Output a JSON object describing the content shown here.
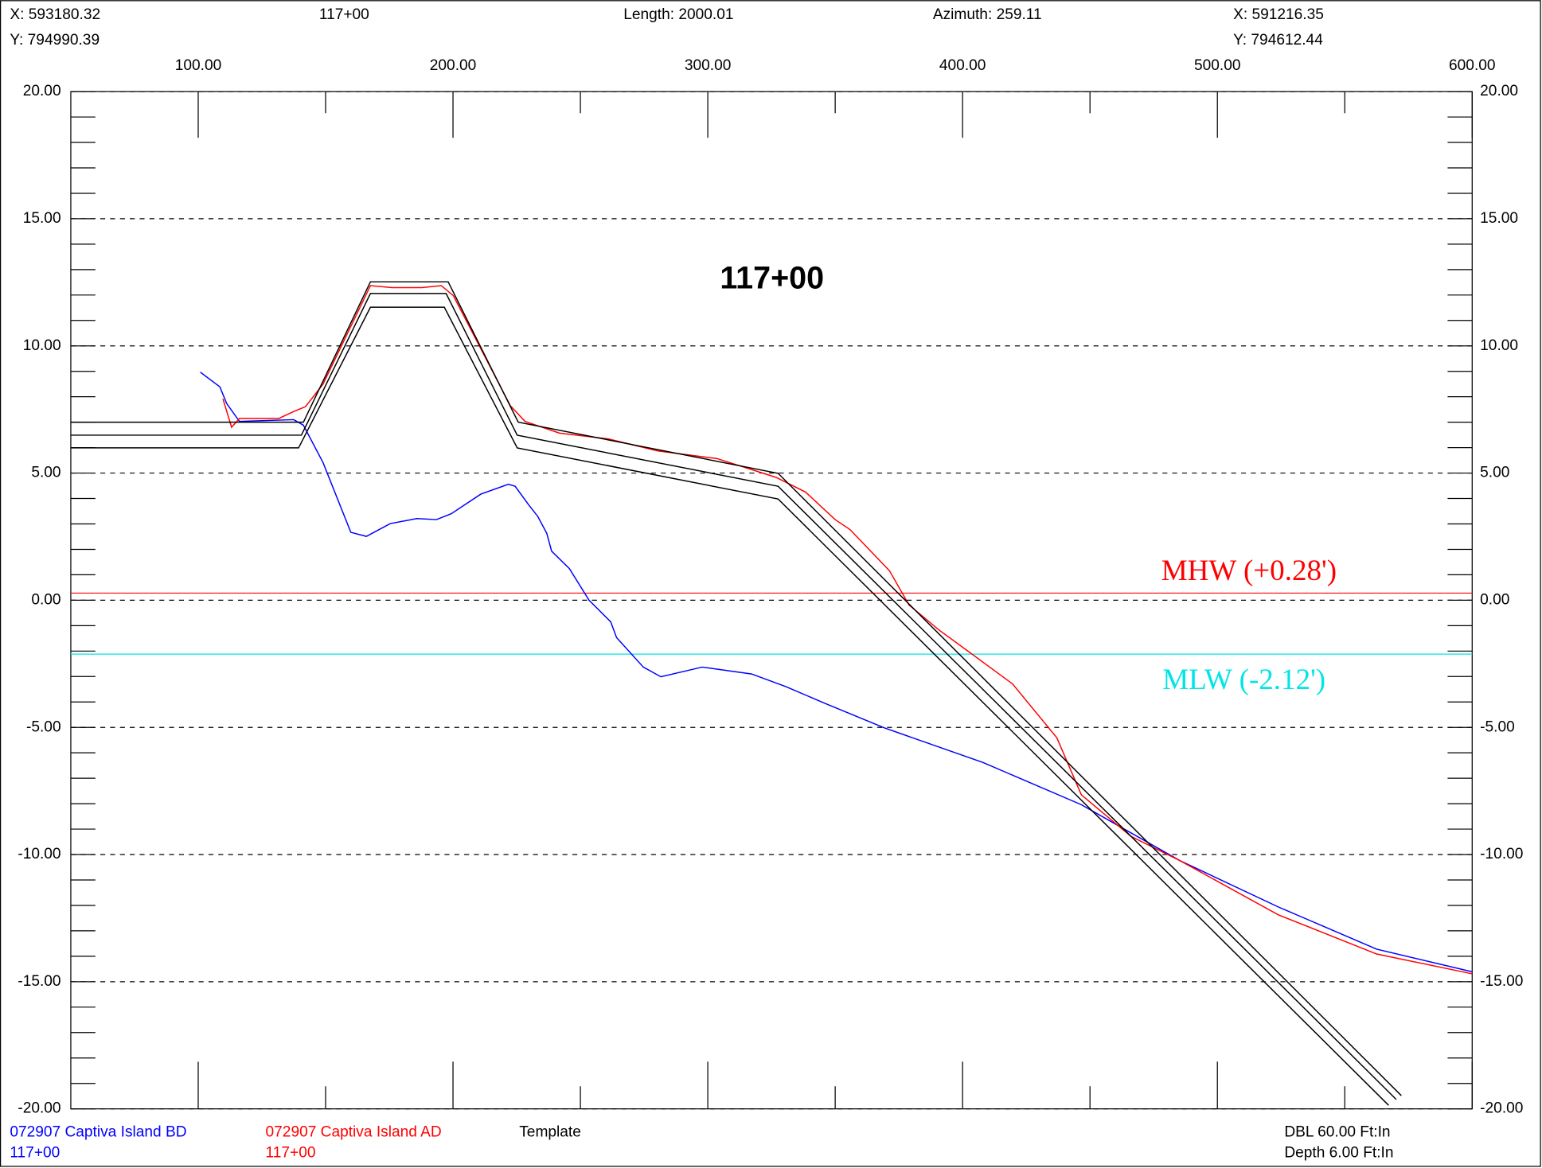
{
  "header": {
    "left": [
      "X: 593180.32",
      "Y: 794990.39"
    ],
    "station": "117+00",
    "length": "Length: 2000.01",
    "azimuth": "Azimuth: 259.11",
    "right": [
      "X: 591216.35",
      "Y: 794612.44"
    ]
  },
  "chart_data": {
    "type": "line",
    "title": "117+00",
    "xlim": [
      50,
      600
    ],
    "xticks": [
      {
        "value": 100,
        "label": "100.00"
      },
      {
        "value": 200,
        "label": "200.00"
      },
      {
        "value": 300,
        "label": "300.00"
      },
      {
        "value": 400,
        "label": "400.00"
      },
      {
        "value": 500,
        "label": "500.00"
      },
      {
        "value": 600,
        "label": "600.00"
      }
    ],
    "xminor": [
      150,
      250,
      350,
      450,
      550
    ],
    "ylim": [
      -20,
      20
    ],
    "yticks": [
      {
        "value": 20,
        "label": "20.00"
      },
      {
        "value": 15,
        "label": "15.00"
      },
      {
        "value": 10,
        "label": "10.00"
      },
      {
        "value": 5,
        "label": "5.00"
      },
      {
        "value": 0,
        "label": "0.00"
      },
      {
        "value": -5,
        "label": "-5.00"
      },
      {
        "value": -10,
        "label": "-10.00"
      },
      {
        "value": -15,
        "label": "-15.00"
      },
      {
        "value": -20,
        "label": "-20.00"
      }
    ],
    "yminor": [
      19,
      18,
      17,
      16,
      14,
      13,
      12,
      11,
      9,
      8,
      7,
      6,
      4,
      3,
      2,
      1,
      -1,
      -2,
      -3,
      -4,
      -6,
      -7,
      -8,
      -9,
      -11,
      -12,
      -13,
      -14,
      -16,
      -17,
      -18,
      -19
    ],
    "grid": true,
    "series": [
      {
        "name": "072907 Captiva Island BD",
        "station": "117+00",
        "color": "#0000ff",
        "x": [
          100.8,
          108.5,
          111.2,
          116.2,
          137.5,
          141.3,
          149,
          159.9,
          166,
          175.3,
          185.8,
          193.5,
          199.3,
          210.9,
          221.7,
          224.4,
          229.4,
          233.3,
          236.8,
          238.7,
          245.7,
          253.4,
          261.9,
          264.2,
          274.7,
          281.6,
          297.8,
          317.2,
          330.7,
          346.1,
          369.3,
          408,
          446.6,
          485.3,
          523.9,
          562.5,
          600
        ],
        "values": [
          8.97,
          8.39,
          7.73,
          7.03,
          7.1,
          6.88,
          5.41,
          2.67,
          2.51,
          3.01,
          3.21,
          3.17,
          3.4,
          4.17,
          4.56,
          4.48,
          3.79,
          3.29,
          2.63,
          1.93,
          1.24,
          0,
          -0.85,
          -1.47,
          -2.63,
          -3.01,
          -2.63,
          -2.9,
          -3.4,
          -4.06,
          -5.02,
          -6.38,
          -8.04,
          -10.24,
          -12.06,
          -13.72,
          -14.61
        ]
      },
      {
        "name": "072907 Captiva Island AD",
        "station": "117+00",
        "color": "#ff0000",
        "x": [
          109.7,
          113.1,
          116.2,
          123.9,
          131.7,
          137.5,
          142.1,
          149,
          167.6,
          176.1,
          187.7,
          195.4,
          200.1,
          222.5,
          228.3,
          241.8,
          261.1,
          280.4,
          303.6,
          326.8,
          338.4,
          350,
          355.8,
          371.3,
          379,
          390.6,
          402.2,
          419.6,
          437,
          446.6,
          466,
          485.3,
          523.9,
          562.5,
          600
        ],
        "values": [
          7.92,
          6.8,
          7.15,
          7.15,
          7.15,
          7.42,
          7.61,
          8.5,
          12.37,
          12.29,
          12.29,
          12.37,
          11.98,
          7.65,
          7.03,
          6.57,
          6.34,
          5.87,
          5.57,
          4.83,
          4.25,
          3.17,
          2.78,
          1.16,
          -0.19,
          -1.16,
          -2.01,
          -3.29,
          -5.41,
          -7.65,
          -9.28,
          -10.24,
          -12.37,
          -13.91,
          -14.69
        ]
      },
      {
        "name": "Template",
        "color": "#000000",
        "lines": [
          {
            "x": [
              50,
              141.3,
              167.6,
              198.1,
              225.6,
              327.6,
              572.2
            ],
            "values": [
              7,
              7,
              12.52,
              12.52,
              7,
              4.99,
              -19.48
            ]
          },
          {
            "x": [
              50,
              140.5,
              167.6,
              197.3,
              225.2,
              327.6,
              570.2
            ],
            "values": [
              6.49,
              6.49,
              12.06,
              12.06,
              6.49,
              4.48,
              -19.63
            ]
          },
          {
            "x": [
              50,
              139.4,
              167.6,
              196.6,
              225.2,
              327.6,
              567.2
            ],
            "values": [
              5.99,
              5.99,
              11.52,
              11.52,
              5.99,
              3.98,
              -19.86
            ]
          }
        ]
      }
    ],
    "hlines": [
      {
        "label": "MHW (+0.28')",
        "value": 0.28,
        "color": "#ff0000"
      },
      {
        "label": "MLW (-2.12')",
        "value": -2.12,
        "color": "#00e5e5"
      }
    ],
    "footer_right": [
      "DBL 60.00 Ft:In",
      "Depth 6.00 Ft:In"
    ]
  }
}
